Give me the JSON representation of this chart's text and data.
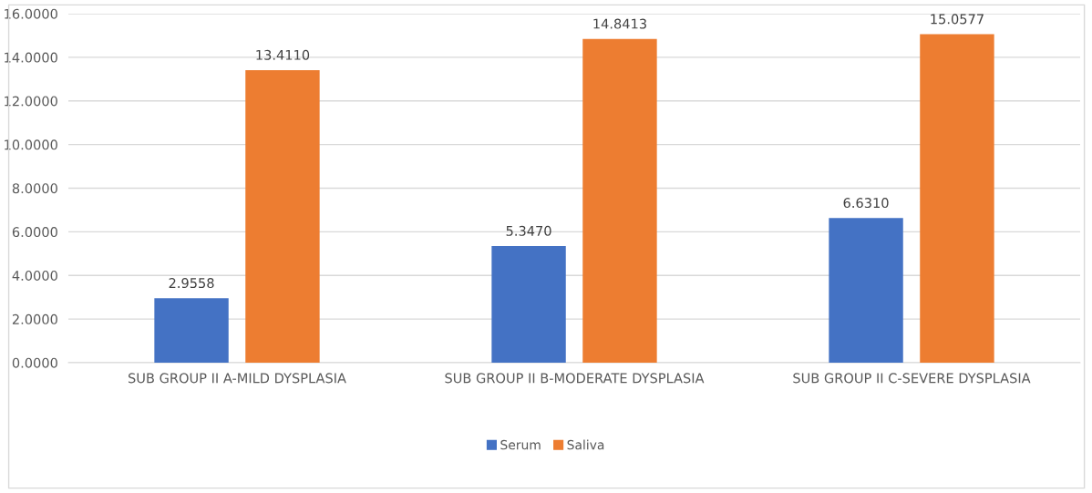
{
  "chart_data": {
    "type": "bar",
    "categories": [
      "SUB GROUP II A-MILD DYSPLASIA",
      "SUB GROUP II B-MODERATE DYSPLASIA",
      "SUB GROUP II C-SEVERE DYSPLASIA"
    ],
    "series": [
      {
        "name": "Serum",
        "color": "#4472c4",
        "values": [
          2.9558,
          5.347,
          6.631
        ],
        "value_labels": [
          "2.9558",
          "5.3470",
          "6.6310"
        ]
      },
      {
        "name": "Saliva",
        "color": "#ed7d31",
        "values": [
          13.411,
          14.8413,
          15.0577
        ],
        "value_labels": [
          "13.4110",
          "14.8413",
          "15.0577"
        ]
      }
    ],
    "ylim": [
      0,
      16
    ],
    "yticks": [
      {
        "value": 0,
        "label": "0.0000"
      },
      {
        "value": 2,
        "label": "2.0000"
      },
      {
        "value": 4,
        "label": "4.0000"
      },
      {
        "value": 6,
        "label": "6.0000"
      },
      {
        "value": 8,
        "label": "8.0000"
      },
      {
        "value": 10,
        "label": "10.0000"
      },
      {
        "value": 12,
        "label": "12.0000"
      },
      {
        "value": 14,
        "label": "14.0000"
      },
      {
        "value": 16,
        "label": "16.0000"
      }
    ],
    "grid": "y",
    "legend": "bottom"
  }
}
